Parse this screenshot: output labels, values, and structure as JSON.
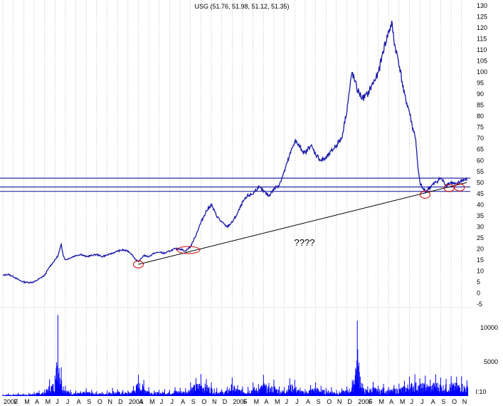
{
  "chart_data": {
    "type": "line",
    "title": "USG (51.76, 51.98, 51.12, 51.35)",
    "annotation": "????",
    "volume_unit_label": "I:10",
    "colors": {
      "price": "#1a1aa8",
      "volume": "#0000ff",
      "level_line": "#2a2aa8",
      "trend_line": "#000000",
      "circle": "#cc0000",
      "grid": "#9a9a9a"
    },
    "price_axis": {
      "ylim": [
        -5,
        130
      ],
      "ticks": [
        "-5",
        "0",
        "5",
        "10",
        "15",
        "20",
        "25",
        "30",
        "35",
        "40",
        "45",
        "50",
        "55",
        "60",
        "65",
        "70",
        "75",
        "80",
        "85",
        "90",
        "95",
        "100",
        "105",
        "110",
        "115",
        "120",
        "125",
        "130"
      ]
    },
    "volume_axis": {
      "ticks": [
        "5000",
        "10000"
      ]
    },
    "x_axis": {
      "labels": [
        {
          "t": 0,
          "label": "2002"
        },
        {
          "t": 1,
          "label": "F"
        },
        {
          "t": 2,
          "label": "M"
        },
        {
          "t": 3,
          "label": "A"
        },
        {
          "t": 4,
          "label": "M"
        },
        {
          "t": 5,
          "label": "J"
        },
        {
          "t": 6,
          "label": "J"
        },
        {
          "t": 7,
          "label": "A"
        },
        {
          "t": 8,
          "label": "S"
        },
        {
          "t": 9,
          "label": "O"
        },
        {
          "t": 10,
          "label": "N"
        },
        {
          "t": 11,
          "label": "D"
        },
        {
          "t": 12,
          "label": "2004"
        },
        {
          "t": 13,
          "label": "A"
        },
        {
          "t": 14,
          "label": "M"
        },
        {
          "t": 15,
          "label": "J"
        },
        {
          "t": 16,
          "label": "J"
        },
        {
          "t": 17,
          "label": "A"
        },
        {
          "t": 18,
          "label": "S"
        },
        {
          "t": 19,
          "label": "O"
        },
        {
          "t": 20,
          "label": "N"
        },
        {
          "t": 21,
          "label": "D"
        },
        {
          "t": 22,
          "label": "2005"
        },
        {
          "t": 23,
          "label": "F"
        },
        {
          "t": 24,
          "label": "M"
        },
        {
          "t": 25,
          "label": "A"
        },
        {
          "t": 26,
          "label": "M"
        },
        {
          "t": 27,
          "label": "J"
        },
        {
          "t": 28,
          "label": "J"
        },
        {
          "t": 29,
          "label": "A"
        },
        {
          "t": 30,
          "label": "S"
        },
        {
          "t": 31,
          "label": "O"
        },
        {
          "t": 32,
          "label": "N"
        },
        {
          "t": 33,
          "label": "D"
        },
        {
          "t": 34,
          "label": "2006"
        },
        {
          "t": 35,
          "label": "F"
        },
        {
          "t": 36,
          "label": "M"
        },
        {
          "t": 37,
          "label": "A"
        },
        {
          "t": 38,
          "label": "M"
        },
        {
          "t": 39,
          "label": "J"
        },
        {
          "t": 40,
          "label": "J"
        },
        {
          "t": 41,
          "label": "A"
        },
        {
          "t": 42,
          "label": "S"
        },
        {
          "t": 43,
          "label": "O"
        },
        {
          "t": 44,
          "label": "N"
        }
      ]
    },
    "series": [
      {
        "values": [
          [
            0,
            8
          ],
          [
            0.5,
            8.5
          ],
          [
            1,
            7.5
          ],
          [
            1.5,
            6
          ],
          [
            2,
            5
          ],
          [
            2.5,
            4.8
          ],
          [
            3,
            5
          ],
          [
            3.5,
            6.5
          ],
          [
            4,
            8
          ],
          [
            4.5,
            12
          ],
          [
            5,
            15
          ],
          [
            5.3,
            17
          ],
          [
            5.6,
            22
          ],
          [
            5.8,
            17
          ],
          [
            6,
            15
          ],
          [
            6.5,
            16
          ],
          [
            7,
            17
          ],
          [
            7.5,
            17.5
          ],
          [
            8,
            16.5
          ],
          [
            8.5,
            17
          ],
          [
            9,
            17.5
          ],
          [
            9.5,
            16.5
          ],
          [
            10,
            17.2
          ],
          [
            10.5,
            18
          ],
          [
            11,
            19
          ],
          [
            11.5,
            19.5
          ],
          [
            12,
            19
          ],
          [
            12.3,
            18
          ],
          [
            12.6,
            16
          ],
          [
            13,
            14
          ],
          [
            13.5,
            17
          ],
          [
            14,
            16.5
          ],
          [
            14.5,
            18
          ],
          [
            15,
            18.5
          ],
          [
            15.5,
            18
          ],
          [
            16,
            19
          ],
          [
            16.5,
            20
          ],
          [
            17,
            20
          ],
          [
            17.5,
            19
          ],
          [
            18,
            21
          ],
          [
            18.5,
            26
          ],
          [
            19,
            32
          ],
          [
            19.5,
            37
          ],
          [
            20,
            40
          ],
          [
            20.5,
            35
          ],
          [
            21,
            32
          ],
          [
            21.5,
            30
          ],
          [
            22,
            32
          ],
          [
            22.5,
            36
          ],
          [
            23,
            41
          ],
          [
            23.5,
            44
          ],
          [
            24,
            45
          ],
          [
            24.5,
            48
          ],
          [
            25,
            46
          ],
          [
            25.5,
            44
          ],
          [
            26,
            47
          ],
          [
            26.5,
            49
          ],
          [
            27,
            55
          ],
          [
            27.5,
            62
          ],
          [
            28,
            69
          ],
          [
            28.5,
            66
          ],
          [
            29,
            63
          ],
          [
            29.5,
            67
          ],
          [
            30,
            63
          ],
          [
            30.5,
            60
          ],
          [
            31,
            61
          ],
          [
            31.5,
            64
          ],
          [
            32,
            67
          ],
          [
            32.5,
            70
          ],
          [
            33,
            83
          ],
          [
            33.5,
            100
          ],
          [
            34,
            92
          ],
          [
            34.5,
            88
          ],
          [
            35,
            90
          ],
          [
            35.5,
            95
          ],
          [
            36,
            99
          ],
          [
            36.5,
            110
          ],
          [
            37,
            118
          ],
          [
            37.3,
            122
          ],
          [
            37.6,
            112
          ],
          [
            38,
            104
          ],
          [
            38.5,
            90
          ],
          [
            39,
            82
          ],
          [
            39.3,
            75
          ],
          [
            39.6,
            70
          ],
          [
            39.8,
            57
          ],
          [
            40,
            50
          ],
          [
            40.3,
            47
          ],
          [
            40.6,
            46
          ],
          [
            41,
            48
          ],
          [
            41.5,
            50
          ],
          [
            42,
            52
          ],
          [
            42.5,
            49
          ],
          [
            43,
            50
          ],
          [
            43.5,
            49
          ],
          [
            44,
            51
          ],
          [
            44.5,
            51.35
          ]
        ]
      }
    ],
    "volume_series": {
      "values": [
        [
          0,
          250
        ],
        [
          0.5,
          400
        ],
        [
          1,
          300
        ],
        [
          1.5,
          500
        ],
        [
          2,
          350
        ],
        [
          2.5,
          450
        ],
        [
          3,
          600
        ],
        [
          3.5,
          800
        ],
        [
          4,
          900
        ],
        [
          4.5,
          2500
        ],
        [
          5,
          3000
        ],
        [
          5.3,
          12500
        ],
        [
          5.6,
          4200
        ],
        [
          6,
          1500
        ],
        [
          6.5,
          900
        ],
        [
          7,
          800
        ],
        [
          7.5,
          700
        ],
        [
          8,
          1100
        ],
        [
          8.5,
          900
        ],
        [
          9,
          700
        ],
        [
          9.5,
          600
        ],
        [
          10,
          800
        ],
        [
          10.5,
          1200
        ],
        [
          11,
          1000
        ],
        [
          11.5,
          900
        ],
        [
          12,
          800
        ],
        [
          12.5,
          1400
        ],
        [
          13,
          3100
        ],
        [
          13.5,
          2400
        ],
        [
          14,
          1300
        ],
        [
          14.5,
          800
        ],
        [
          15,
          900
        ],
        [
          15.5,
          1000
        ],
        [
          16,
          900
        ],
        [
          16.5,
          1300
        ],
        [
          17,
          1200
        ],
        [
          17.5,
          1100
        ],
        [
          18,
          2000
        ],
        [
          18.5,
          2600
        ],
        [
          19,
          3200
        ],
        [
          19.5,
          2500
        ],
        [
          20,
          2000
        ],
        [
          20.5,
          1200
        ],
        [
          21,
          1000
        ],
        [
          21.5,
          1300
        ],
        [
          22,
          2700
        ],
        [
          22.5,
          1600
        ],
        [
          23,
          1400
        ],
        [
          23.5,
          1300
        ],
        [
          24,
          2000
        ],
        [
          24.5,
          1700
        ],
        [
          25,
          3100
        ],
        [
          25.5,
          1900
        ],
        [
          26,
          2400
        ],
        [
          26.5,
          1400
        ],
        [
          27,
          1300
        ],
        [
          27.5,
          2600
        ],
        [
          28,
          2400
        ],
        [
          28.5,
          1200
        ],
        [
          29,
          1000
        ],
        [
          29.5,
          1600
        ],
        [
          30,
          2000
        ],
        [
          30.5,
          1500
        ],
        [
          31,
          1200
        ],
        [
          31.5,
          1300
        ],
        [
          32,
          900
        ],
        [
          32.5,
          1100
        ],
        [
          33,
          1400
        ],
        [
          33.5,
          2000
        ],
        [
          34,
          11000
        ],
        [
          34.5,
          1800
        ],
        [
          35,
          1400
        ],
        [
          35.5,
          2100
        ],
        [
          36,
          1500
        ],
        [
          36.5,
          1800
        ],
        [
          37,
          1300
        ],
        [
          37.5,
          1600
        ],
        [
          38,
          1800
        ],
        [
          38.5,
          2200
        ],
        [
          39,
          2800
        ],
        [
          39.5,
          3200
        ],
        [
          40,
          2600
        ],
        [
          40.5,
          3000
        ],
        [
          41,
          2400
        ],
        [
          41.5,
          3200
        ],
        [
          42,
          2700
        ],
        [
          42.5,
          2500
        ],
        [
          43,
          2900
        ],
        [
          43.5,
          2800
        ],
        [
          44,
          2900
        ],
        [
          44.5,
          2300
        ]
      ]
    },
    "horizontal_levels": [
      52,
      48,
      46
    ],
    "trend_line": {
      "from": [
        13,
        13
      ],
      "to": [
        44.5,
        50
      ]
    },
    "circles": [
      [
        13,
        13
      ],
      [
        17.8,
        19.5
      ],
      [
        40.5,
        44.5
      ],
      [
        42.8,
        47.5
      ],
      [
        43.8,
        47.8
      ]
    ]
  }
}
